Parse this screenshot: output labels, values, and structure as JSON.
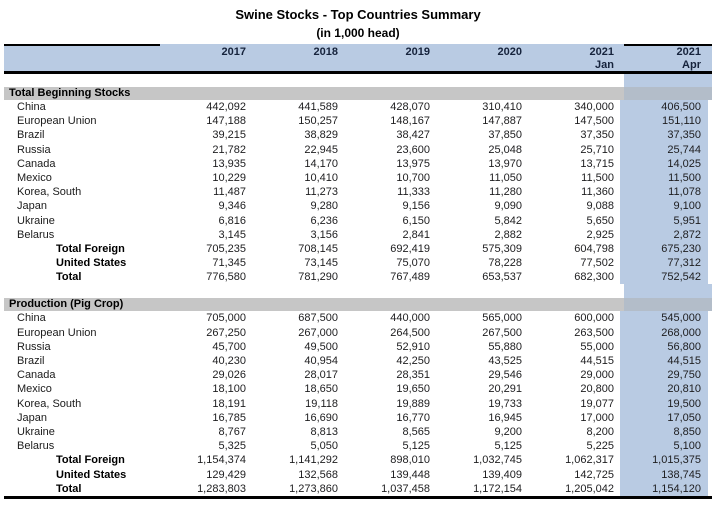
{
  "title": "Swine Stocks - Top Countries Summary",
  "subtitle": "(in 1,000 head)",
  "columns": [
    {
      "year": "2017",
      "sub": ""
    },
    {
      "year": "2018",
      "sub": ""
    },
    {
      "year": "2019",
      "sub": ""
    },
    {
      "year": "2020",
      "sub": ""
    },
    {
      "year": "2021",
      "sub": "Jan"
    },
    {
      "year": "2021",
      "sub": "Apr"
    }
  ],
  "colors": {
    "accent_blue": "#b9cbe3",
    "section_gray": "#c6c6c6",
    "section_gray_blue": "#b3bdc9"
  },
  "sections": [
    {
      "title": "Total Beginning Stocks",
      "rows": [
        {
          "label": "China",
          "style": "country",
          "values": [
            "442,092",
            "441,589",
            "428,070",
            "310,410",
            "340,000",
            "406,500"
          ]
        },
        {
          "label": "European Union",
          "style": "country",
          "values": [
            "147,188",
            "150,257",
            "148,167",
            "147,887",
            "147,500",
            "151,110"
          ]
        },
        {
          "label": "Brazil",
          "style": "country",
          "values": [
            "39,215",
            "38,829",
            "38,427",
            "37,850",
            "37,350",
            "37,350"
          ]
        },
        {
          "label": "Russia",
          "style": "country",
          "values": [
            "21,782",
            "22,945",
            "23,600",
            "25,048",
            "25,710",
            "25,744"
          ]
        },
        {
          "label": "Canada",
          "style": "country",
          "values": [
            "13,935",
            "14,170",
            "13,975",
            "13,970",
            "13,715",
            "14,025"
          ]
        },
        {
          "label": "Mexico",
          "style": "country",
          "values": [
            "10,229",
            "10,410",
            "10,700",
            "11,050",
            "11,500",
            "11,500"
          ]
        },
        {
          "label": "Korea, South",
          "style": "country",
          "values": [
            "11,487",
            "11,273",
            "11,333",
            "11,280",
            "11,360",
            "11,078"
          ]
        },
        {
          "label": "Japan",
          "style": "country",
          "values": [
            "9,346",
            "9,280",
            "9,156",
            "9,090",
            "9,088",
            "9,100"
          ]
        },
        {
          "label": "Ukraine",
          "style": "country",
          "values": [
            "6,816",
            "6,236",
            "6,150",
            "5,842",
            "5,650",
            "5,951"
          ]
        },
        {
          "label": "Belarus",
          "style": "country",
          "values": [
            "3,145",
            "3,156",
            "2,841",
            "2,882",
            "2,925",
            "2,872"
          ]
        },
        {
          "label": "Total Foreign",
          "style": "total",
          "values": [
            "705,235",
            "708,145",
            "692,419",
            "575,309",
            "604,798",
            "675,230"
          ]
        },
        {
          "label": "United States",
          "style": "total",
          "values": [
            "71,345",
            "73,145",
            "75,070",
            "78,228",
            "77,502",
            "77,312"
          ]
        },
        {
          "label": "Total",
          "style": "total",
          "values": [
            "776,580",
            "781,290",
            "767,489",
            "653,537",
            "682,300",
            "752,542"
          ]
        }
      ]
    },
    {
      "title": "Production (Pig Crop)",
      "rows": [
        {
          "label": "China",
          "style": "country",
          "values": [
            "705,000",
            "687,500",
            "440,000",
            "565,000",
            "600,000",
            "545,000"
          ]
        },
        {
          "label": "European Union",
          "style": "country",
          "values": [
            "267,250",
            "267,000",
            "264,500",
            "267,500",
            "263,500",
            "268,000"
          ]
        },
        {
          "label": "Russia",
          "style": "country",
          "values": [
            "45,700",
            "49,500",
            "52,910",
            "55,880",
            "55,000",
            "56,800"
          ]
        },
        {
          "label": "Brazil",
          "style": "country",
          "values": [
            "40,230",
            "40,954",
            "42,250",
            "43,525",
            "44,515",
            "44,515"
          ]
        },
        {
          "label": "Canada",
          "style": "country",
          "values": [
            "29,026",
            "28,017",
            "28,351",
            "29,546",
            "29,000",
            "29,750"
          ]
        },
        {
          "label": "Mexico",
          "style": "country",
          "values": [
            "18,100",
            "18,650",
            "19,650",
            "20,291",
            "20,800",
            "20,810"
          ]
        },
        {
          "label": "Korea, South",
          "style": "country",
          "values": [
            "18,191",
            "19,118",
            "19,889",
            "19,733",
            "19,077",
            "19,500"
          ]
        },
        {
          "label": "Japan",
          "style": "country",
          "values": [
            "16,785",
            "16,690",
            "16,770",
            "16,945",
            "17,000",
            "17,050"
          ]
        },
        {
          "label": "Ukraine",
          "style": "country",
          "values": [
            "8,767",
            "8,813",
            "8,565",
            "9,200",
            "8,200",
            "8,850"
          ]
        },
        {
          "label": "Belarus",
          "style": "country",
          "values": [
            "5,325",
            "5,050",
            "5,125",
            "5,125",
            "5,225",
            "5,100"
          ]
        },
        {
          "label": "Total Foreign",
          "style": "total",
          "values": [
            "1,154,374",
            "1,141,292",
            "898,010",
            "1,032,745",
            "1,062,317",
            "1,015,375"
          ]
        },
        {
          "label": "United States",
          "style": "total",
          "values": [
            "129,429",
            "132,568",
            "139,448",
            "139,409",
            "142,725",
            "138,745"
          ]
        },
        {
          "label": "Total",
          "style": "total",
          "values": [
            "1,283,803",
            "1,273,860",
            "1,037,458",
            "1,172,154",
            "1,205,042",
            "1,154,120"
          ]
        }
      ]
    }
  ]
}
